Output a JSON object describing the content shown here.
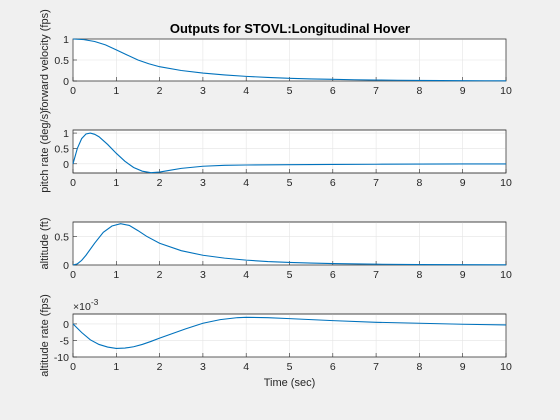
{
  "chart_data": {
    "title": "Outputs for STOVL:Longitudinal Hover",
    "colors": {
      "line": "#0072BD",
      "axes": "#262626",
      "grid": "#e4e4e4",
      "background": "#f0f0f0"
    },
    "subplots": [
      {
        "type": "line",
        "ylabel": "forward velocity (fps)",
        "xlabel": "",
        "xlim": [
          0,
          10
        ],
        "ylim": [
          0,
          1
        ],
        "xticks": [
          0,
          1,
          2,
          3,
          4,
          5,
          6,
          7,
          8,
          9,
          10
        ],
        "yticks": [
          0,
          0.5,
          1
        ],
        "ytick_labels": [
          "0",
          "0.5",
          "1"
        ],
        "exponent_label": "",
        "grid": true,
        "series": [
          {
            "x": [
              0,
              0.25,
              0.5,
              0.75,
              1,
              1.25,
              1.5,
              1.75,
              2,
              2.5,
              3,
              3.5,
              4,
              4.5,
              5,
              5.5,
              6,
              6.5,
              7,
              7.5,
              8,
              8.5,
              9,
              9.5,
              10
            ],
            "y": [
              1.0,
              0.985,
              0.94,
              0.86,
              0.74,
              0.62,
              0.5,
              0.41,
              0.34,
              0.25,
              0.19,
              0.145,
              0.11,
              0.085,
              0.065,
              0.05,
              0.04,
              0.03,
              0.023,
              0.018,
              0.014,
              0.011,
              0.008,
              0.006,
              0.005
            ]
          }
        ]
      },
      {
        "type": "line",
        "ylabel": "pitch rate (deg/s)",
        "xlabel": "",
        "xlim": [
          0,
          10
        ],
        "ylim": [
          -0.3,
          1.1
        ],
        "xticks": [
          0,
          1,
          2,
          3,
          4,
          5,
          6,
          7,
          8,
          9,
          10
        ],
        "yticks": [
          0,
          0.5,
          1
        ],
        "ytick_labels": [
          "0",
          "0.5",
          "1"
        ],
        "exponent_label": "",
        "grid": true,
        "series": [
          {
            "x": [
              0,
              0.1,
              0.2,
              0.3,
              0.4,
              0.5,
              0.6,
              0.8,
              1.0,
              1.2,
              1.4,
              1.6,
              1.8,
              2.0,
              2.2,
              2.5,
              3,
              3.5,
              4,
              5,
              6,
              7,
              8,
              9,
              10
            ],
            "y": [
              0,
              0.5,
              0.82,
              0.97,
              1.0,
              0.96,
              0.88,
              0.63,
              0.34,
              0.08,
              -0.12,
              -0.24,
              -0.29,
              -0.27,
              -0.22,
              -0.15,
              -0.08,
              -0.05,
              -0.04,
              -0.03,
              -0.02,
              -0.015,
              -0.01,
              -0.006,
              -0.004
            ]
          }
        ]
      },
      {
        "type": "line",
        "ylabel": "altitude (ft)",
        "xlabel": "",
        "xlim": [
          0,
          10
        ],
        "ylim": [
          0,
          0.75
        ],
        "xticks": [
          0,
          1,
          2,
          3,
          4,
          5,
          6,
          7,
          8,
          9,
          10
        ],
        "yticks": [
          0,
          0.5
        ],
        "ytick_labels": [
          "0",
          "0.5"
        ],
        "exponent_label": "",
        "grid": true,
        "series": [
          {
            "x": [
              0,
              0.1,
              0.2,
              0.3,
              0.5,
              0.7,
              0.9,
              1.1,
              1.3,
              1.5,
              1.7,
              2.0,
              2.5,
              3,
              3.5,
              4,
              4.5,
              5,
              5.5,
              6,
              7,
              8,
              9,
              10
            ],
            "y": [
              0,
              0.02,
              0.08,
              0.17,
              0.38,
              0.57,
              0.68,
              0.72,
              0.69,
              0.6,
              0.5,
              0.38,
              0.25,
              0.17,
              0.12,
              0.085,
              0.06,
              0.045,
              0.033,
              0.025,
              0.014,
              0.008,
              0.005,
              0.003
            ]
          }
        ]
      },
      {
        "type": "line",
        "ylabel": "altitude rate (fps)",
        "xlabel": "Time (sec)",
        "xlim": [
          0,
          10
        ],
        "ylim": [
          -10,
          3
        ],
        "xticks": [
          0,
          1,
          2,
          3,
          4,
          5,
          6,
          7,
          8,
          9,
          10
        ],
        "yticks": [
          -10,
          -5,
          0
        ],
        "ytick_labels": [
          "-10",
          "-5",
          "0"
        ],
        "exponent_label": "×10",
        "exponent_power": "-3",
        "grid": true,
        "series": [
          {
            "x": [
              0,
              0.2,
              0.4,
              0.6,
              0.8,
              1.0,
              1.2,
              1.4,
              1.6,
              1.8,
              2.0,
              2.3,
              2.6,
              3.0,
              3.4,
              3.8,
              4.0,
              4.5,
              5,
              5.5,
              6,
              7,
              8,
              9,
              10
            ],
            "y": [
              0,
              -2.6,
              -4.8,
              -6.2,
              -7.0,
              -7.4,
              -7.3,
              -6.9,
              -6.2,
              -5.3,
              -4.3,
              -2.9,
              -1.5,
              0.2,
              1.3,
              1.9,
              2.0,
              1.9,
              1.6,
              1.3,
              1.0,
              0.5,
              0.2,
              -0.1,
              -0.3
            ]
          }
        ]
      }
    ]
  }
}
